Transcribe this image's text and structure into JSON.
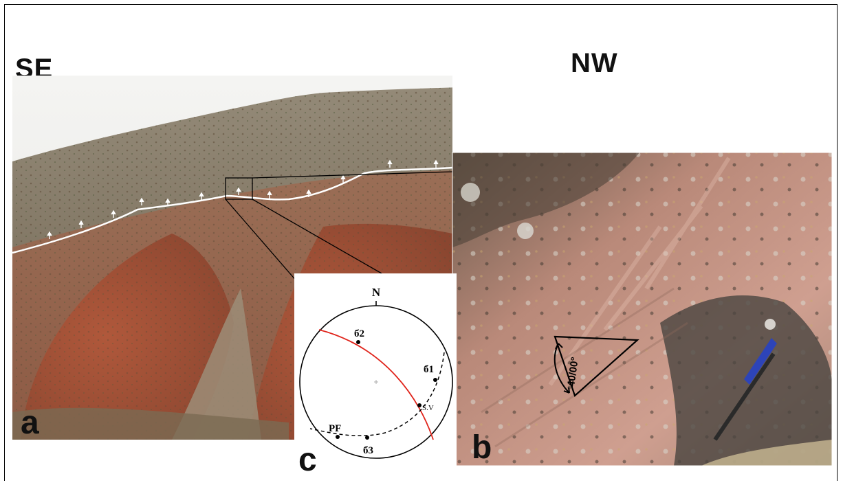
{
  "labels": {
    "left_direction": "SE",
    "right_direction": "NW"
  },
  "panels": {
    "a": "a",
    "b": "b",
    "c": "c"
  },
  "measurement": "40/00°",
  "stereonet": {
    "north": "N",
    "sigma2": "б2",
    "sigma1": "б1",
    "sigma3": "б3",
    "pf": "PF",
    "sv": "S.V"
  },
  "colors": {
    "great_circle": "#e0241b",
    "hill_top": "#8a7d68",
    "red_slope": "#a0553c",
    "rock_face": "#c79786"
  }
}
